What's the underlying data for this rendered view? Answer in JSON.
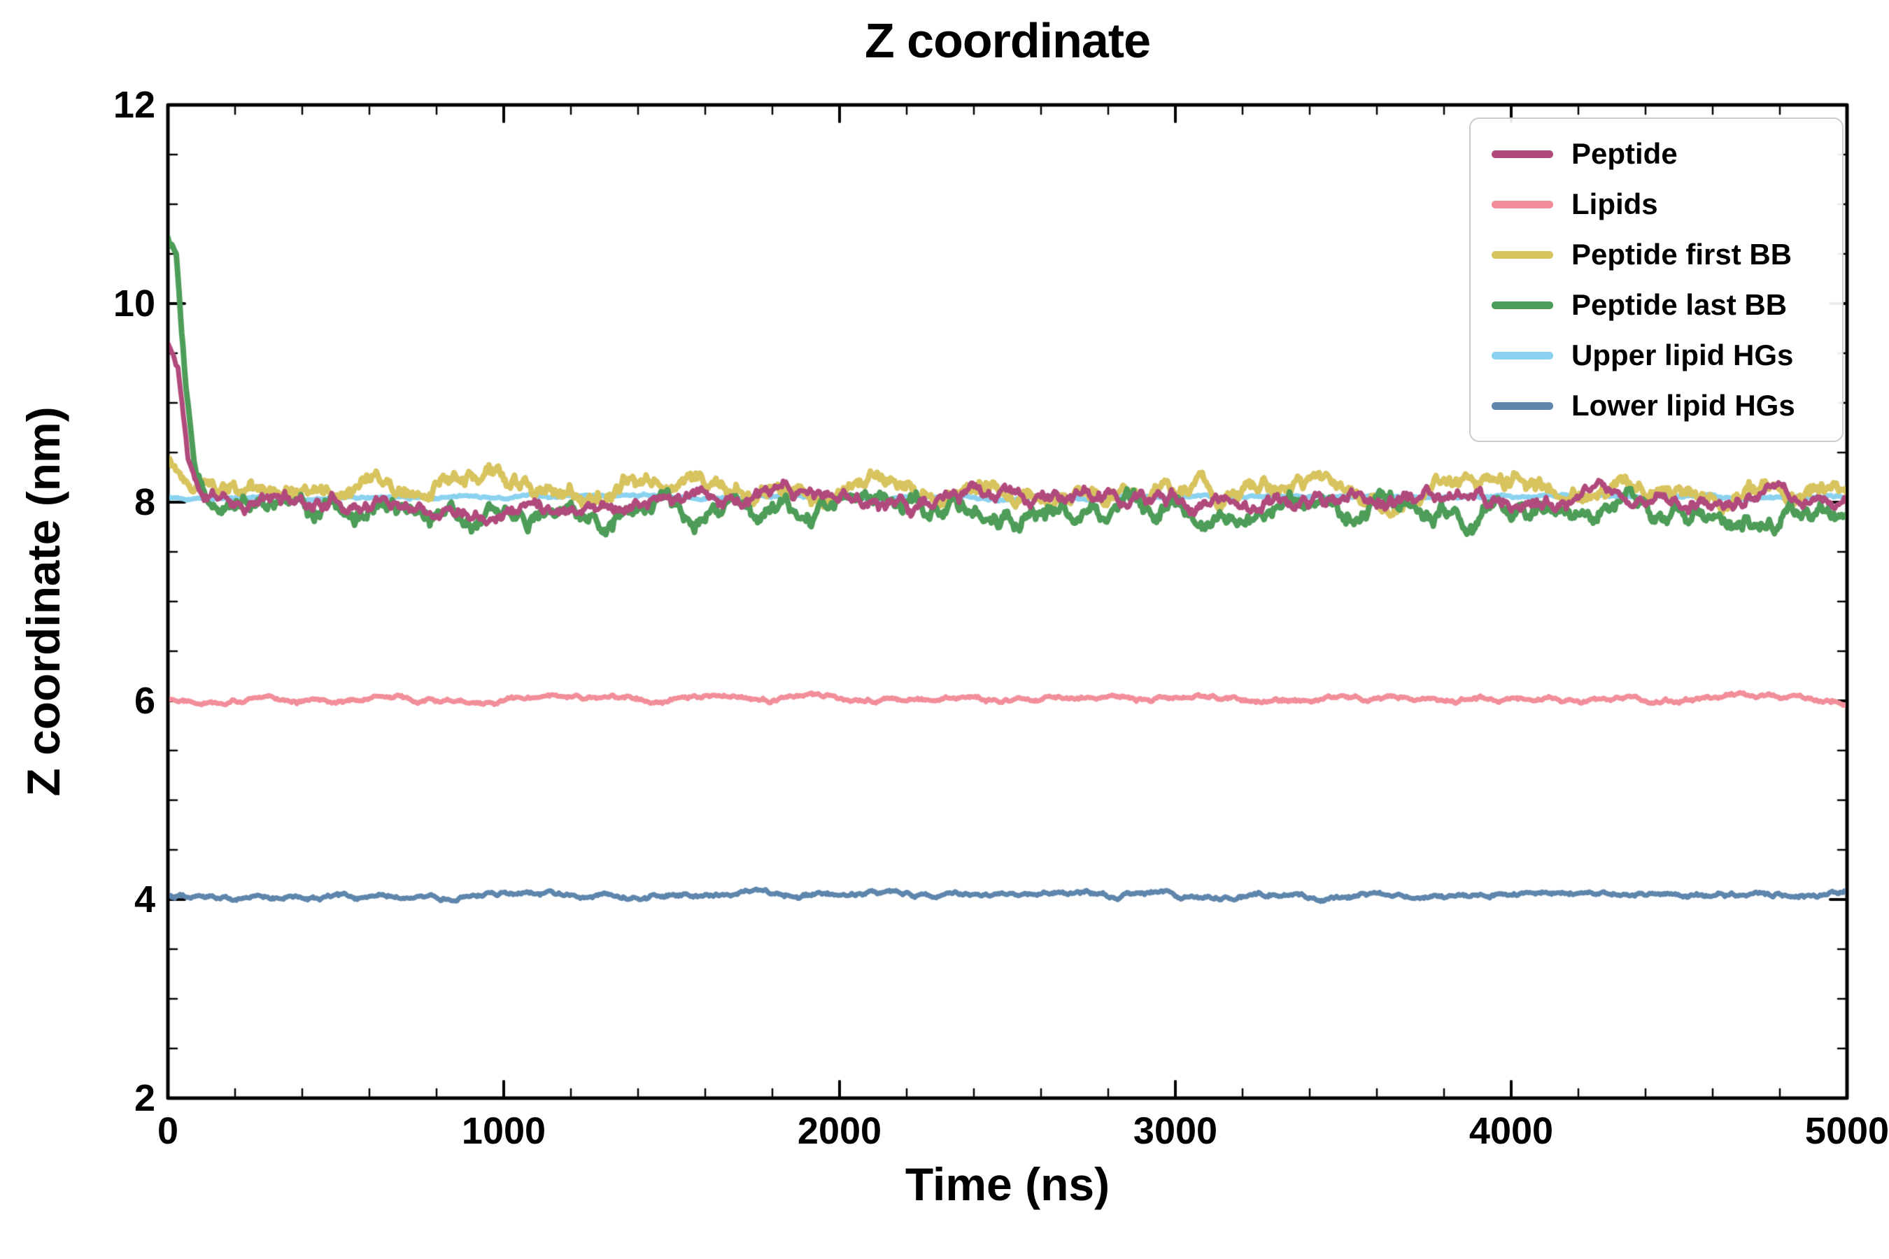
{
  "chart_data": {
    "type": "line",
    "title": "Z coordinate",
    "xlabel": "Time (ns)",
    "ylabel": "Z coordinate (nm)",
    "xlim": [
      0,
      5000
    ],
    "ylim": [
      2,
      12
    ],
    "x_ticks": [
      0,
      1000,
      2000,
      3000,
      4000,
      5000
    ],
    "y_ticks": [
      2,
      4,
      6,
      8,
      10,
      12
    ],
    "x_minor_step": 200,
    "y_minor_step": 0.5,
    "grid": false,
    "legend_position": "upper right",
    "axis_color": "#000000",
    "series": [
      {
        "name": "Peptide",
        "color": "#b14a7c",
        "linewidth": 7,
        "baseline": 8.02,
        "noise": 0.1,
        "seed": 11,
        "zorder": 6,
        "start_points": [
          [
            0,
            9.6
          ],
          [
            30,
            9.35
          ],
          [
            60,
            8.45
          ],
          [
            100,
            8.05
          ]
        ]
      },
      {
        "name": "Lipids",
        "color": "#f28e9a",
        "linewidth": 7,
        "baseline": 6.02,
        "noise": 0.03,
        "seed": 22,
        "zorder": 3,
        "start_points": null
      },
      {
        "name": "Peptide first BB",
        "color": "#d8c45e",
        "linewidth": 8,
        "baseline": 8.1,
        "noise": 0.12,
        "seed": 33,
        "zorder": 4,
        "start_points": [
          [
            0,
            8.45
          ],
          [
            40,
            8.25
          ],
          [
            80,
            8.1
          ]
        ]
      },
      {
        "name": "Peptide last BB",
        "color": "#4d9c57",
        "linewidth": 8,
        "baseline": 7.92,
        "noise": 0.13,
        "seed": 44,
        "zorder": 5,
        "start_points": [
          [
            0,
            10.65
          ],
          [
            25,
            10.5
          ],
          [
            50,
            9.3
          ],
          [
            80,
            8.35
          ],
          [
            120,
            8.0
          ],
          [
            160,
            7.9
          ]
        ]
      },
      {
        "name": "Upper lipid HGs",
        "color": "#8ad2ef",
        "linewidth": 7,
        "baseline": 8.05,
        "noise": 0.02,
        "seed": 55,
        "zorder": 2,
        "start_points": null
      },
      {
        "name": "Lower lipid HGs",
        "color": "#5e86ad",
        "linewidth": 7,
        "baseline": 4.05,
        "noise": 0.03,
        "seed": 66,
        "zorder": 2,
        "start_points": null
      }
    ]
  }
}
